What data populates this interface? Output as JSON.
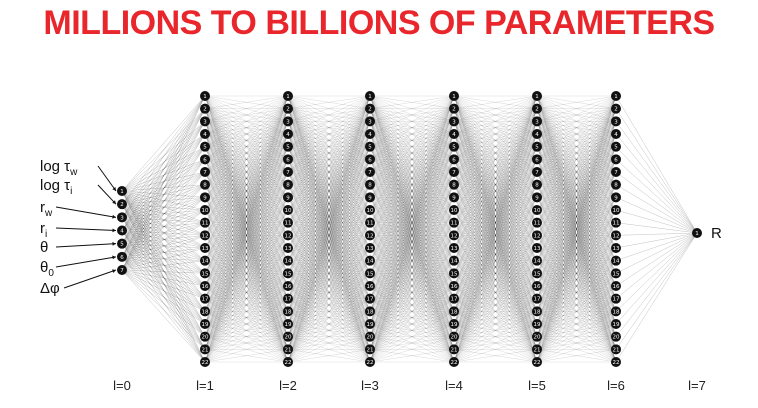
{
  "title": "MILLIONS TO BILLIONS OF PARAMETERS",
  "colors": {
    "title": "#e8262b",
    "node": "#111111",
    "edge": "#000000"
  },
  "network": {
    "layers": [
      {
        "label": "l=0",
        "size": 7
      },
      {
        "label": "l=1",
        "size": 22
      },
      {
        "label": "l=2",
        "size": 22
      },
      {
        "label": "l=3",
        "size": 22
      },
      {
        "label": "l=4",
        "size": 22
      },
      {
        "label": "l=5",
        "size": 22
      },
      {
        "label": "l=6",
        "size": 22
      },
      {
        "label": "l=7",
        "size": 1
      }
    ],
    "inputs": [
      {
        "base": "log τ",
        "sub": "w"
      },
      {
        "base": "log τ",
        "sub": "i"
      },
      {
        "base": "r",
        "sub": "w"
      },
      {
        "base": "r",
        "sub": "i"
      },
      {
        "base": "θ",
        "sub": ""
      },
      {
        "base": "θ",
        "sub": "0"
      },
      {
        "base": "Δφ",
        "sub": ""
      }
    ],
    "output": "R"
  }
}
